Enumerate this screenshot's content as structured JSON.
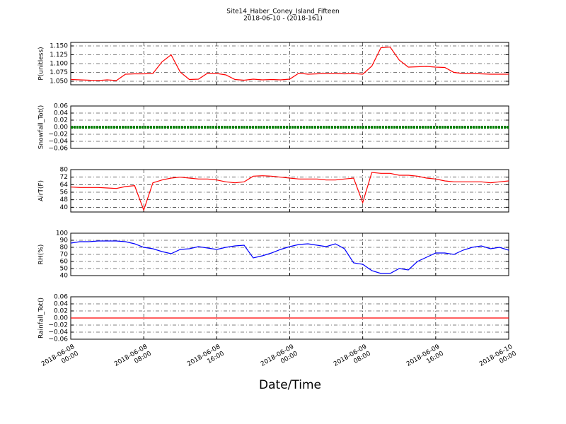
{
  "chart_data": [
    {
      "type": "line",
      "title": "Site14_Haber_Coney_Island_Fifteen",
      "subtitle": "2018-06-10 - (2018-161)",
      "y_label": "P(unitless)",
      "x": [
        "2018-06-08 00:00",
        "2018-06-08 01:00",
        "2018-06-08 02:00",
        "2018-06-08 03:00",
        "2018-06-08 04:00",
        "2018-06-08 05:00",
        "2018-06-08 06:00",
        "2018-06-08 07:00",
        "2018-06-08 08:00",
        "2018-06-08 09:00",
        "2018-06-08 10:00",
        "2018-06-08 11:00",
        "2018-06-08 12:00",
        "2018-06-08 13:00",
        "2018-06-08 14:00",
        "2018-06-08 15:00",
        "2018-06-08 16:00",
        "2018-06-08 17:00",
        "2018-06-08 18:00",
        "2018-06-08 19:00",
        "2018-06-08 20:00",
        "2018-06-08 21:00",
        "2018-06-08 22:00",
        "2018-06-08 23:00",
        "2018-06-09 00:00",
        "2018-06-09 01:00",
        "2018-06-09 02:00",
        "2018-06-09 03:00",
        "2018-06-09 04:00",
        "2018-06-09 05:00",
        "2018-06-09 06:00",
        "2018-06-09 07:00",
        "2018-06-09 08:00",
        "2018-06-09 09:00",
        "2018-06-09 10:00",
        "2018-06-09 11:00",
        "2018-06-09 12:00",
        "2018-06-09 13:00",
        "2018-06-09 14:00",
        "2018-06-09 15:00",
        "2018-06-09 16:00",
        "2018-06-09 17:00",
        "2018-06-09 18:00",
        "2018-06-09 19:00",
        "2018-06-09 20:00",
        "2018-06-09 21:00",
        "2018-06-09 22:00",
        "2018-06-09 23:00",
        "2018-06-10 00:00"
      ],
      "series": [
        {
          "color": "#ff0000",
          "values": [
            1.055,
            1.054,
            1.053,
            1.052,
            1.054,
            1.052,
            1.07,
            1.071,
            1.071,
            1.072,
            1.105,
            1.125,
            1.076,
            1.055,
            1.056,
            1.073,
            1.072,
            1.068,
            1.055,
            1.053,
            1.056,
            1.054,
            1.055,
            1.054,
            1.056,
            1.073,
            1.07,
            1.071,
            1.072,
            1.072,
            1.071,
            1.072,
            1.07,
            1.093,
            1.145,
            1.147,
            1.11,
            1.09,
            1.091,
            1.092,
            1.09,
            1.089,
            1.075,
            1.072,
            1.072,
            1.071,
            1.07,
            1.07,
            1.07
          ]
        }
      ],
      "xlim": [
        "2018-06-08 00:00",
        "2018-06-10 00:00"
      ],
      "ylim": [
        1.04,
        1.16
      ],
      "yticks": [
        {
          "value": 1.05,
          "label": "1.050"
        },
        {
          "value": 1.075,
          "label": "1.075"
        },
        {
          "value": 1.1,
          "label": "1.100"
        },
        {
          "value": 1.125,
          "label": "1.125"
        },
        {
          "value": 1.15,
          "label": "1.150"
        }
      ],
      "grid": true
    },
    {
      "type": "line",
      "y_label": "Snowfall_Tot()",
      "x": [
        "2018-06-08 00:00",
        "2018-06-08 01:00",
        "2018-06-08 02:00",
        "2018-06-08 03:00",
        "2018-06-08 04:00",
        "2018-06-08 05:00",
        "2018-06-08 06:00",
        "2018-06-08 07:00",
        "2018-06-08 08:00",
        "2018-06-08 09:00",
        "2018-06-08 10:00",
        "2018-06-08 11:00",
        "2018-06-08 12:00",
        "2018-06-08 13:00",
        "2018-06-08 14:00",
        "2018-06-08 15:00",
        "2018-06-08 16:00",
        "2018-06-08 17:00",
        "2018-06-08 18:00",
        "2018-06-08 19:00",
        "2018-06-08 20:00",
        "2018-06-08 21:00",
        "2018-06-08 22:00",
        "2018-06-08 23:00",
        "2018-06-09 00:00",
        "2018-06-09 01:00",
        "2018-06-09 02:00",
        "2018-06-09 03:00",
        "2018-06-09 04:00",
        "2018-06-09 05:00",
        "2018-06-09 06:00",
        "2018-06-09 07:00",
        "2018-06-09 08:00",
        "2018-06-09 09:00",
        "2018-06-09 10:00",
        "2018-06-09 11:00",
        "2018-06-09 12:00",
        "2018-06-09 13:00",
        "2018-06-09 14:00",
        "2018-06-09 15:00",
        "2018-06-09 16:00",
        "2018-06-09 17:00",
        "2018-06-09 18:00",
        "2018-06-09 19:00",
        "2018-06-09 20:00",
        "2018-06-09 21:00",
        "2018-06-09 22:00",
        "2018-06-09 23:00",
        "2018-06-10 00:00"
      ],
      "series": [
        {
          "color": "#008000",
          "values": [
            0,
            0,
            0,
            0,
            0,
            0,
            0,
            0,
            0,
            0,
            0,
            0,
            0,
            0,
            0,
            0,
            0,
            0,
            0,
            0,
            0,
            0,
            0,
            0,
            0,
            0,
            0,
            0,
            0,
            0,
            0,
            0,
            0,
            0,
            0,
            0,
            0,
            0,
            0,
            0,
            0,
            0,
            0,
            0,
            0,
            0,
            0,
            0,
            0
          ]
        }
      ],
      "xlim": [
        "2018-06-08 00:00",
        "2018-06-10 00:00"
      ],
      "ylim": [
        -0.06,
        0.06
      ],
      "yticks": [
        {
          "value": -0.06,
          "label": "−0.06"
        },
        {
          "value": -0.04,
          "label": "−0.04"
        },
        {
          "value": -0.02,
          "label": "−0.02"
        },
        {
          "value": 0,
          "label": "0.00"
        },
        0.02,
        0.04,
        0.06
      ],
      "grid": true
    },
    {
      "type": "line",
      "y_label": "AirT(F)",
      "x": [
        "2018-06-08 00:00",
        "2018-06-08 01:00",
        "2018-06-08 02:00",
        "2018-06-08 03:00",
        "2018-06-08 04:00",
        "2018-06-08 05:00",
        "2018-06-08 06:00",
        "2018-06-08 07:00",
        "2018-06-08 08:00",
        "2018-06-08 09:00",
        "2018-06-08 10:00",
        "2018-06-08 11:00",
        "2018-06-08 12:00",
        "2018-06-08 13:00",
        "2018-06-08 14:00",
        "2018-06-08 15:00",
        "2018-06-08 16:00",
        "2018-06-08 17:00",
        "2018-06-08 18:00",
        "2018-06-08 19:00",
        "2018-06-08 20:00",
        "2018-06-08 21:00",
        "2018-06-08 22:00",
        "2018-06-08 23:00",
        "2018-06-09 00:00",
        "2018-06-09 01:00",
        "2018-06-09 02:00",
        "2018-06-09 03:00",
        "2018-06-09 04:00",
        "2018-06-09 05:00",
        "2018-06-09 06:00",
        "2018-06-09 07:00",
        "2018-06-09 08:00",
        "2018-06-09 09:00",
        "2018-06-09 10:00",
        "2018-06-09 11:00",
        "2018-06-09 12:00",
        "2018-06-09 13:00",
        "2018-06-09 14:00",
        "2018-06-09 15:00",
        "2018-06-09 16:00",
        "2018-06-09 17:00",
        "2018-06-09 18:00",
        "2018-06-09 19:00",
        "2018-06-09 20:00",
        "2018-06-09 21:00",
        "2018-06-09 22:00",
        "2018-06-09 23:00",
        "2018-06-10 00:00"
      ],
      "series": [
        {
          "color": "#ff0000",
          "values": [
            61.5,
            61,
            61,
            61,
            60.5,
            60,
            62,
            63,
            37,
            66,
            69,
            71,
            72,
            71,
            70,
            70,
            69,
            67,
            66,
            67,
            73,
            73.5,
            73,
            72,
            71,
            70,
            70,
            70,
            69,
            69,
            70,
            71,
            45,
            77,
            76,
            76,
            74,
            74,
            73,
            71,
            70,
            68,
            67,
            67,
            67,
            67,
            66,
            67,
            68
          ]
        }
      ],
      "xlim": [
        "2018-06-08 00:00",
        "2018-06-10 00:00"
      ],
      "ylim": [
        35,
        80
      ],
      "yticks": [
        40,
        48,
        56,
        64,
        72,
        80
      ],
      "grid": true
    },
    {
      "type": "line",
      "y_label": "RH(%)",
      "x": [
        "2018-06-08 00:00",
        "2018-06-08 01:00",
        "2018-06-08 02:00",
        "2018-06-08 03:00",
        "2018-06-08 04:00",
        "2018-06-08 05:00",
        "2018-06-08 06:00",
        "2018-06-08 07:00",
        "2018-06-08 08:00",
        "2018-06-08 09:00",
        "2018-06-08 10:00",
        "2018-06-08 11:00",
        "2018-06-08 12:00",
        "2018-06-08 13:00",
        "2018-06-08 14:00",
        "2018-06-08 15:00",
        "2018-06-08 16:00",
        "2018-06-08 17:00",
        "2018-06-08 18:00",
        "2018-06-08 19:00",
        "2018-06-08 20:00",
        "2018-06-08 21:00",
        "2018-06-08 22:00",
        "2018-06-08 23:00",
        "2018-06-09 00:00",
        "2018-06-09 01:00",
        "2018-06-09 02:00",
        "2018-06-09 03:00",
        "2018-06-09 04:00",
        "2018-06-09 05:00",
        "2018-06-09 06:00",
        "2018-06-09 07:00",
        "2018-06-09 08:00",
        "2018-06-09 09:00",
        "2018-06-09 10:00",
        "2018-06-09 11:00",
        "2018-06-09 12:00",
        "2018-06-09 13:00",
        "2018-06-09 14:00",
        "2018-06-09 15:00",
        "2018-06-09 16:00",
        "2018-06-09 17:00",
        "2018-06-09 18:00",
        "2018-06-09 19:00",
        "2018-06-09 20:00",
        "2018-06-09 21:00",
        "2018-06-09 22:00",
        "2018-06-09 23:00",
        "2018-06-10 00:00"
      ],
      "series": [
        {
          "color": "#0000ff",
          "values": [
            86,
            88,
            88,
            89,
            89,
            89,
            88,
            85,
            80,
            78,
            74,
            71,
            77,
            78,
            81,
            79,
            77,
            80,
            82,
            83,
            65,
            68,
            72,
            77,
            81,
            84,
            85,
            83,
            81,
            85,
            78,
            58,
            56,
            47,
            43,
            43,
            50,
            48,
            60,
            66,
            72,
            72,
            70,
            76,
            80,
            82,
            78,
            80,
            76
          ]
        }
      ],
      "xlim": [
        "2018-06-08 00:00",
        "2018-06-10 00:00"
      ],
      "ylim": [
        40,
        100
      ],
      "yticks": [
        40,
        50,
        60,
        70,
        80,
        90,
        100
      ],
      "grid": true
    },
    {
      "type": "line",
      "y_label": "Rainfall_Tot()",
      "x_label": "Date/Time",
      "x": [
        "2018-06-08 00:00",
        "2018-06-08 01:00",
        "2018-06-08 02:00",
        "2018-06-08 03:00",
        "2018-06-08 04:00",
        "2018-06-08 05:00",
        "2018-06-08 06:00",
        "2018-06-08 07:00",
        "2018-06-08 08:00",
        "2018-06-08 09:00",
        "2018-06-08 10:00",
        "2018-06-08 11:00",
        "2018-06-08 12:00",
        "2018-06-08 13:00",
        "2018-06-08 14:00",
        "2018-06-08 15:00",
        "2018-06-08 16:00",
        "2018-06-08 17:00",
        "2018-06-08 18:00",
        "2018-06-08 19:00",
        "2018-06-08 20:00",
        "2018-06-08 21:00",
        "2018-06-08 22:00",
        "2018-06-08 23:00",
        "2018-06-09 00:00",
        "2018-06-09 01:00",
        "2018-06-09 02:00",
        "2018-06-09 03:00",
        "2018-06-09 04:00",
        "2018-06-09 05:00",
        "2018-06-09 06:00",
        "2018-06-09 07:00",
        "2018-06-09 08:00",
        "2018-06-09 09:00",
        "2018-06-09 10:00",
        "2018-06-09 11:00",
        "2018-06-09 12:00",
        "2018-06-09 13:00",
        "2018-06-09 14:00",
        "2018-06-09 15:00",
        "2018-06-09 16:00",
        "2018-06-09 17:00",
        "2018-06-09 18:00",
        "2018-06-09 19:00",
        "2018-06-09 20:00",
        "2018-06-09 21:00",
        "2018-06-09 22:00",
        "2018-06-09 23:00",
        "2018-06-10 00:00"
      ],
      "series": [
        {
          "color": "#ff0000",
          "values": [
            0,
            0,
            0,
            0,
            0,
            0,
            0,
            0,
            0,
            0,
            0,
            0,
            0,
            0,
            0,
            0,
            0,
            0,
            0,
            0,
            0,
            0,
            0,
            0,
            0,
            0,
            0,
            0,
            0,
            0,
            0,
            0,
            0,
            0,
            0,
            0,
            0,
            0,
            0,
            0,
            0,
            0,
            0,
            0,
            0,
            0,
            0,
            0,
            0
          ]
        }
      ],
      "xlim": [
        "2018-06-08 00:00",
        "2018-06-10 00:00"
      ],
      "ylim": [
        -0.06,
        0.06
      ],
      "yticks": [
        {
          "value": -0.06,
          "label": "−0.06"
        },
        {
          "value": -0.04,
          "label": "−0.04"
        },
        {
          "value": -0.02,
          "label": "−0.02"
        },
        {
          "value": 0,
          "label": "0.00"
        },
        0.02,
        0.04,
        0.06
      ],
      "xticks": [
        {
          "value": "2018-06-08 00:00",
          "label": "2018-06-08\n00:00"
        },
        {
          "value": "2018-06-08 08:00",
          "label": "2018-06-08\n08:00"
        },
        {
          "value": "2018-06-08 16:00",
          "label": "2018-06-08\n16:00"
        },
        {
          "value": "2018-06-09 00:00",
          "label": "2018-06-09\n00:00"
        },
        {
          "value": "2018-06-09 08:00",
          "label": "2018-06-09\n08:00"
        },
        {
          "value": "2018-06-09 16:00",
          "label": "2018-06-09\n16:00"
        },
        {
          "value": "2018-06-10 00:00",
          "label": "2018-06-10\n00:00"
        }
      ],
      "grid": true
    }
  ]
}
